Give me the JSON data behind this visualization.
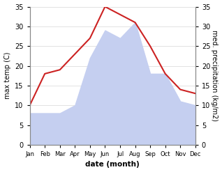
{
  "months": [
    "Jan",
    "Feb",
    "Mar",
    "Apr",
    "May",
    "Jun",
    "Jul",
    "Aug",
    "Sep",
    "Oct",
    "Nov",
    "Dec"
  ],
  "temp": [
    10,
    18,
    19,
    23,
    27,
    35,
    33,
    31,
    25,
    18,
    14,
    13
  ],
  "precip": [
    8,
    8,
    8,
    10,
    22,
    29,
    27,
    31,
    18,
    18,
    11,
    10
  ],
  "temp_color": "#cc2222",
  "precip_color": "#c5cff0",
  "left_ylabel": "max temp (C)",
  "right_ylabel": "med. precipitation (kg/m2)",
  "xlabel": "date (month)",
  "ylim_left": [
    0,
    35
  ],
  "ylim_right": [
    0,
    35
  ],
  "yticks_left": [
    0,
    5,
    10,
    15,
    20,
    25,
    30,
    35
  ],
  "yticks_right": [
    0,
    5,
    10,
    15,
    20,
    25,
    30,
    35
  ],
  "background_color": "#ffffff",
  "grid_color": "#dddddd",
  "spine_color": "#888888"
}
